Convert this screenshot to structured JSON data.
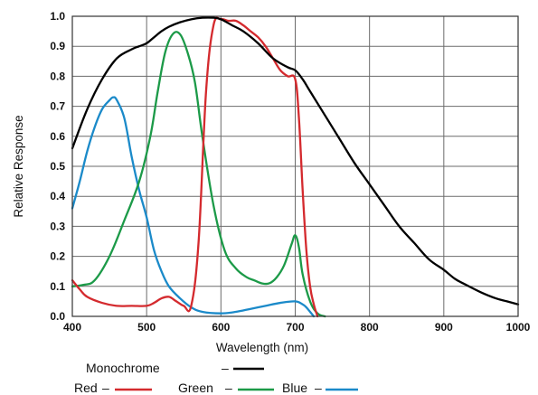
{
  "chart_data": {
    "type": "line",
    "xlabel": "Wavelength (nm)",
    "ylabel": "Relative Response",
    "xlim": [
      400,
      1000
    ],
    "ylim": [
      0,
      1.0
    ],
    "xticks": [
      400,
      500,
      600,
      700,
      800,
      900,
      1000
    ],
    "xtick_labels": [
      "400",
      "500",
      "600",
      "700",
      "800",
      "900",
      "1000"
    ],
    "yticks": [
      0,
      0.1,
      0.2,
      0.3,
      0.4,
      0.5,
      0.6,
      0.7,
      0.8,
      0.9,
      1.0
    ],
    "ytick_labels": [
      "0.0",
      "0.1",
      "0.2",
      "0.3",
      "0.4",
      "0.5",
      "0.6",
      "0.7",
      "0.8",
      "0.9",
      "1.0"
    ],
    "grid": true,
    "legend_placement": "bottom",
    "legend_dash": "–",
    "series": [
      {
        "name": "Monochrome",
        "color": "#000000",
        "x": [
          400,
          420,
          440,
          460,
          480,
          490,
          500,
          510,
          520,
          530,
          545,
          560,
          575,
          590,
          600,
          615,
          630,
          650,
          670,
          690,
          700,
          710,
          720,
          740,
          760,
          780,
          800,
          820,
          840,
          860,
          880,
          900,
          915,
          930,
          950,
          970,
          985,
          1000
        ],
        "y": [
          0.56,
          0.69,
          0.79,
          0.86,
          0.89,
          0.9,
          0.91,
          0.93,
          0.95,
          0.965,
          0.98,
          0.99,
          0.995,
          0.995,
          0.99,
          0.97,
          0.95,
          0.91,
          0.86,
          0.83,
          0.82,
          0.79,
          0.75,
          0.67,
          0.59,
          0.51,
          0.44,
          0.37,
          0.3,
          0.245,
          0.19,
          0.155,
          0.125,
          0.105,
          0.08,
          0.06,
          0.05,
          0.04
        ]
      },
      {
        "name": "Red",
        "color": "#d42a2e",
        "x": [
          400,
          410,
          420,
          440,
          460,
          480,
          500,
          510,
          520,
          530,
          540,
          550,
          560,
          570,
          580,
          590,
          600,
          610,
          620,
          630,
          640,
          650,
          660,
          670,
          680,
          690,
          700,
          705,
          710,
          715,
          720,
          725,
          730
        ],
        "y": [
          0.12,
          0.09,
          0.065,
          0.045,
          0.035,
          0.035,
          0.035,
          0.045,
          0.06,
          0.065,
          0.05,
          0.035,
          0.035,
          0.25,
          0.75,
          0.97,
          0.99,
          0.985,
          0.985,
          0.97,
          0.95,
          0.93,
          0.9,
          0.86,
          0.82,
          0.8,
          0.79,
          0.66,
          0.42,
          0.22,
          0.1,
          0.04,
          0.0
        ]
      },
      {
        "name": "Green",
        "color": "#1c9a48",
        "x": [
          400,
          415,
          430,
          450,
          470,
          490,
          505,
          515,
          525,
          535,
          545,
          555,
          565,
          575,
          590,
          605,
          620,
          635,
          645,
          655,
          665,
          675,
          685,
          695,
          700,
          705,
          710,
          720,
          730,
          740
        ],
        "y": [
          0.1,
          0.105,
          0.12,
          0.2,
          0.32,
          0.45,
          0.6,
          0.75,
          0.88,
          0.94,
          0.94,
          0.88,
          0.78,
          0.6,
          0.37,
          0.22,
          0.16,
          0.13,
          0.12,
          0.11,
          0.11,
          0.13,
          0.17,
          0.24,
          0.27,
          0.23,
          0.14,
          0.05,
          0.01,
          0.0
        ]
      },
      {
        "name": "Blue",
        "color": "#1b8ac9",
        "x": [
          400,
          410,
          420,
          430,
          440,
          450,
          455,
          460,
          470,
          480,
          490,
          500,
          510,
          520,
          530,
          545,
          560,
          575,
          600,
          620,
          640,
          660,
          680,
          700,
          710,
          715,
          720,
          725
        ],
        "y": [
          0.36,
          0.45,
          0.55,
          0.63,
          0.69,
          0.72,
          0.73,
          0.72,
          0.66,
          0.53,
          0.42,
          0.33,
          0.22,
          0.15,
          0.1,
          0.06,
          0.03,
          0.015,
          0.01,
          0.015,
          0.025,
          0.035,
          0.045,
          0.05,
          0.04,
          0.03,
          0.015,
          0.0
        ]
      }
    ]
  }
}
